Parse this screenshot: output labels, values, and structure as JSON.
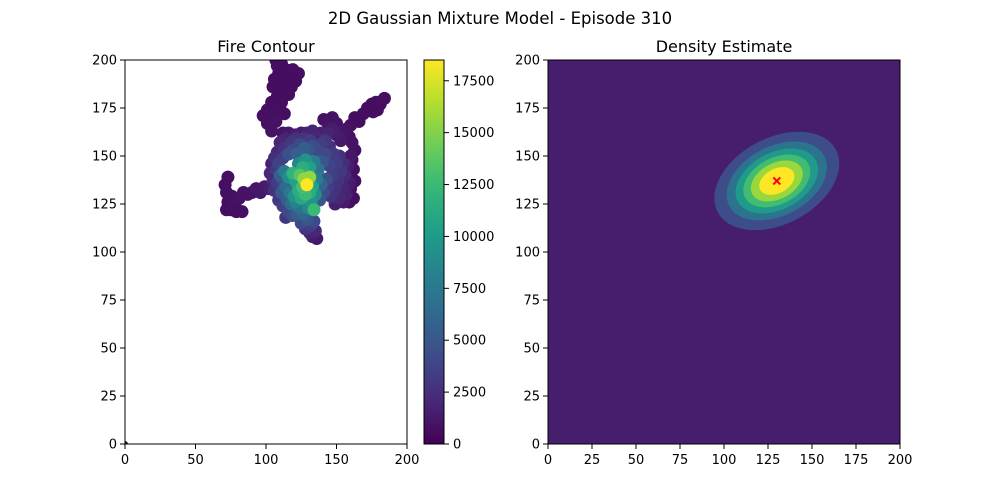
{
  "figure": {
    "suptitle": "2D Gaussian Mixture Model - Episode 310"
  },
  "chart_data": [
    {
      "type": "scatter",
      "title": "Fire Contour",
      "xlabel": "",
      "ylabel": "",
      "xlim": [
        0,
        200
      ],
      "ylim": [
        0,
        200
      ],
      "xticks": [
        "0",
        "50",
        "100",
        "150",
        "200"
      ],
      "yticks": [
        "0",
        "25",
        "50",
        "75",
        "100",
        "125",
        "150",
        "175",
        "200"
      ],
      "colormap": "viridis",
      "colorbar": {
        "range": [
          0,
          18500
        ],
        "ticks": [
          "0",
          "2500",
          "5000",
          "7500",
          "10000",
          "12500",
          "15000",
          "17500"
        ]
      },
      "grid": false,
      "hotspot": {
        "x": 129,
        "y": 135
      },
      "points": [
        {
          "x": 0,
          "y": 0,
          "v": 300
        },
        {
          "x": 72,
          "y": 122,
          "v": 700
        },
        {
          "x": 73,
          "y": 126,
          "v": 700
        },
        {
          "x": 72,
          "y": 131,
          "v": 800
        },
        {
          "x": 71,
          "y": 135,
          "v": 700
        },
        {
          "x": 73,
          "y": 139,
          "v": 800
        },
        {
          "x": 75,
          "y": 122,
          "v": 700
        },
        {
          "x": 78,
          "y": 124,
          "v": 800
        },
        {
          "x": 81,
          "y": 128,
          "v": 900
        },
        {
          "x": 84,
          "y": 131,
          "v": 900
        },
        {
          "x": 87,
          "y": 130,
          "v": 900
        },
        {
          "x": 90,
          "y": 131,
          "v": 1000
        },
        {
          "x": 93,
          "y": 133,
          "v": 1100
        },
        {
          "x": 96,
          "y": 131,
          "v": 1200
        },
        {
          "x": 99,
          "y": 134,
          "v": 1300
        },
        {
          "x": 102,
          "y": 133,
          "v": 1500
        },
        {
          "x": 79,
          "y": 121,
          "v": 700
        },
        {
          "x": 83,
          "y": 121,
          "v": 800
        },
        {
          "x": 76,
          "y": 129,
          "v": 800
        },
        {
          "x": 105,
          "y": 137,
          "v": 2200
        },
        {
          "x": 108,
          "y": 136,
          "v": 3300
        },
        {
          "x": 110,
          "y": 140,
          "v": 5500
        },
        {
          "x": 113,
          "y": 142,
          "v": 7600
        },
        {
          "x": 116,
          "y": 139,
          "v": 9000
        },
        {
          "x": 119,
          "y": 141,
          "v": 12000
        },
        {
          "x": 121,
          "y": 137,
          "v": 10500
        },
        {
          "x": 124,
          "y": 140,
          "v": 13500
        },
        {
          "x": 127,
          "y": 138,
          "v": 15500
        },
        {
          "x": 129,
          "y": 135,
          "v": 18500
        },
        {
          "x": 131,
          "y": 139,
          "v": 15500
        },
        {
          "x": 126,
          "y": 134,
          "v": 13000
        },
        {
          "x": 123,
          "y": 132,
          "v": 11500
        },
        {
          "x": 120,
          "y": 129,
          "v": 9500
        },
        {
          "x": 117,
          "y": 131,
          "v": 7500
        },
        {
          "x": 114,
          "y": 134,
          "v": 6200
        },
        {
          "x": 111,
          "y": 131,
          "v": 5200
        },
        {
          "x": 115,
          "y": 127,
          "v": 5500
        },
        {
          "x": 118,
          "y": 125,
          "v": 6500
        },
        {
          "x": 121,
          "y": 126,
          "v": 8200
        },
        {
          "x": 125,
          "y": 128,
          "v": 11000
        },
        {
          "x": 128,
          "y": 130,
          "v": 12500
        },
        {
          "x": 131,
          "y": 131,
          "v": 11500
        },
        {
          "x": 133,
          "y": 134,
          "v": 10500
        },
        {
          "x": 135,
          "y": 130,
          "v": 9000
        },
        {
          "x": 132,
          "y": 126,
          "v": 9500
        },
        {
          "x": 134,
          "y": 122,
          "v": 12500
        },
        {
          "x": 130,
          "y": 123,
          "v": 8500
        },
        {
          "x": 127,
          "y": 120,
          "v": 6000
        },
        {
          "x": 124,
          "y": 123,
          "v": 7000
        },
        {
          "x": 129,
          "y": 117,
          "v": 5000
        },
        {
          "x": 132,
          "y": 114,
          "v": 3500
        },
        {
          "x": 135,
          "y": 111,
          "v": 2000
        },
        {
          "x": 136,
          "y": 107,
          "v": 1200
        },
        {
          "x": 134,
          "y": 116,
          "v": 4000
        },
        {
          "x": 126,
          "y": 144,
          "v": 11500
        },
        {
          "x": 123,
          "y": 146,
          "v": 8500
        },
        {
          "x": 128,
          "y": 148,
          "v": 9500
        },
        {
          "x": 131,
          "y": 144,
          "v": 10500
        },
        {
          "x": 134,
          "y": 147,
          "v": 8000
        },
        {
          "x": 137,
          "y": 143,
          "v": 7000
        },
        {
          "x": 136,
          "y": 138,
          "v": 8000
        },
        {
          "x": 139,
          "y": 135,
          "v": 6000
        },
        {
          "x": 138,
          "y": 127,
          "v": 5000
        },
        {
          "x": 141,
          "y": 131,
          "v": 4300
        },
        {
          "x": 143,
          "y": 138,
          "v": 4500
        },
        {
          "x": 140,
          "y": 147,
          "v": 5000
        },
        {
          "x": 142,
          "y": 151,
          "v": 4000
        },
        {
          "x": 145,
          "y": 145,
          "v": 3700
        },
        {
          "x": 147,
          "y": 140,
          "v": 3400
        },
        {
          "x": 144,
          "y": 134,
          "v": 3300
        },
        {
          "x": 146,
          "y": 129,
          "v": 2800
        },
        {
          "x": 149,
          "y": 133,
          "v": 2600
        },
        {
          "x": 151,
          "y": 137,
          "v": 2800
        },
        {
          "x": 153,
          "y": 142,
          "v": 3000
        },
        {
          "x": 150,
          "y": 146,
          "v": 3400
        },
        {
          "x": 148,
          "y": 151,
          "v": 3200
        },
        {
          "x": 152,
          "y": 150,
          "v": 2600
        },
        {
          "x": 155,
          "y": 146,
          "v": 2300
        },
        {
          "x": 156,
          "y": 140,
          "v": 2100
        },
        {
          "x": 154,
          "y": 134,
          "v": 1900
        },
        {
          "x": 157,
          "y": 130,
          "v": 1700
        },
        {
          "x": 152,
          "y": 128,
          "v": 2000
        },
        {
          "x": 149,
          "y": 125,
          "v": 1600
        },
        {
          "x": 155,
          "y": 126,
          "v": 1300
        },
        {
          "x": 159,
          "y": 136,
          "v": 1400
        },
        {
          "x": 158,
          "y": 145,
          "v": 1500
        },
        {
          "x": 160,
          "y": 150,
          "v": 1200
        },
        {
          "x": 109,
          "y": 146,
          "v": 3600
        },
        {
          "x": 112,
          "y": 149,
          "v": 3300
        },
        {
          "x": 116,
          "y": 151,
          "v": 4500
        },
        {
          "x": 119,
          "y": 153,
          "v": 4200
        },
        {
          "x": 122,
          "y": 151,
          "v": 5600
        },
        {
          "x": 113,
          "y": 154,
          "v": 2600
        },
        {
          "x": 110,
          "y": 157,
          "v": 2000
        },
        {
          "x": 114,
          "y": 159,
          "v": 1800
        },
        {
          "x": 118,
          "y": 157,
          "v": 3000
        },
        {
          "x": 121,
          "y": 159,
          "v": 2600
        },
        {
          "x": 124,
          "y": 156,
          "v": 4000
        },
        {
          "x": 127,
          "y": 154,
          "v": 5400
        },
        {
          "x": 130,
          "y": 153,
          "v": 5000
        },
        {
          "x": 133,
          "y": 155,
          "v": 4400
        },
        {
          "x": 136,
          "y": 153,
          "v": 4000
        },
        {
          "x": 139,
          "y": 156,
          "v": 3400
        },
        {
          "x": 142,
          "y": 158,
          "v": 2900
        },
        {
          "x": 145,
          "y": 155,
          "v": 2600
        },
        {
          "x": 131,
          "y": 158,
          "v": 3300
        },
        {
          "x": 127,
          "y": 159,
          "v": 2600
        },
        {
          "x": 135,
          "y": 160,
          "v": 2000
        },
        {
          "x": 139,
          "y": 162,
          "v": 1600
        },
        {
          "x": 133,
          "y": 163,
          "v": 1800
        },
        {
          "x": 129,
          "y": 162,
          "v": 1700
        },
        {
          "x": 125,
          "y": 162,
          "v": 1300
        },
        {
          "x": 121,
          "y": 161,
          "v": 1500
        },
        {
          "x": 112,
          "y": 162,
          "v": 1000
        },
        {
          "x": 116,
          "y": 162,
          "v": 1200
        },
        {
          "x": 108,
          "y": 152,
          "v": 2000
        },
        {
          "x": 106,
          "y": 149,
          "v": 2400
        },
        {
          "x": 104,
          "y": 146,
          "v": 1700
        },
        {
          "x": 103,
          "y": 141,
          "v": 2000
        },
        {
          "x": 107,
          "y": 143,
          "v": 3000
        },
        {
          "x": 112,
          "y": 137,
          "v": 4400
        },
        {
          "x": 106,
          "y": 132,
          "v": 2600
        },
        {
          "x": 109,
          "y": 127,
          "v": 3000
        },
        {
          "x": 112,
          "y": 124,
          "v": 3600
        },
        {
          "x": 116,
          "y": 121,
          "v": 4000
        },
        {
          "x": 119,
          "y": 119,
          "v": 4500
        },
        {
          "x": 122,
          "y": 120,
          "v": 5400
        },
        {
          "x": 114,
          "y": 118,
          "v": 3000
        },
        {
          "x": 125,
          "y": 115,
          "v": 4000
        },
        {
          "x": 128,
          "y": 112,
          "v": 2800
        },
        {
          "x": 131,
          "y": 110,
          "v": 1700
        },
        {
          "x": 133,
          "y": 108,
          "v": 1300
        },
        {
          "x": 104,
          "y": 163,
          "v": 900
        },
        {
          "x": 101,
          "y": 167,
          "v": 800
        },
        {
          "x": 98,
          "y": 171,
          "v": 800
        },
        {
          "x": 101,
          "y": 174,
          "v": 700
        },
        {
          "x": 104,
          "y": 171,
          "v": 800
        },
        {
          "x": 107,
          "y": 168,
          "v": 900
        },
        {
          "x": 106,
          "y": 175,
          "v": 700
        },
        {
          "x": 104,
          "y": 178,
          "v": 700
        },
        {
          "x": 108,
          "y": 181,
          "v": 700
        },
        {
          "x": 111,
          "y": 178,
          "v": 700
        },
        {
          "x": 110,
          "y": 185,
          "v": 700
        },
        {
          "x": 112,
          "y": 189,
          "v": 700
        },
        {
          "x": 109,
          "y": 193,
          "v": 700
        },
        {
          "x": 106,
          "y": 190,
          "v": 700
        },
        {
          "x": 105,
          "y": 186,
          "v": 700
        },
        {
          "x": 108,
          "y": 197,
          "v": 700
        },
        {
          "x": 107,
          "y": 200,
          "v": 700
        },
        {
          "x": 111,
          "y": 198,
          "v": 700
        },
        {
          "x": 114,
          "y": 195,
          "v": 700
        },
        {
          "x": 117,
          "y": 192,
          "v": 700
        },
        {
          "x": 115,
          "y": 188,
          "v": 700
        },
        {
          "x": 118,
          "y": 186,
          "v": 700
        },
        {
          "x": 121,
          "y": 189,
          "v": 700
        },
        {
          "x": 119,
          "y": 195,
          "v": 700
        },
        {
          "x": 123,
          "y": 193,
          "v": 700
        },
        {
          "x": 116,
          "y": 182,
          "v": 700
        },
        {
          "x": 113,
          "y": 172,
          "v": 800
        },
        {
          "x": 110,
          "y": 174,
          "v": 700
        },
        {
          "x": 144,
          "y": 162,
          "v": 1800
        },
        {
          "x": 147,
          "y": 164,
          "v": 1500
        },
        {
          "x": 150,
          "y": 161,
          "v": 1400
        },
        {
          "x": 153,
          "y": 158,
          "v": 1200
        },
        {
          "x": 156,
          "y": 160,
          "v": 1000
        },
        {
          "x": 153,
          "y": 163,
          "v": 1100
        },
        {
          "x": 150,
          "y": 167,
          "v": 1000
        },
        {
          "x": 147,
          "y": 170,
          "v": 900
        },
        {
          "x": 144,
          "y": 167,
          "v": 1000
        },
        {
          "x": 141,
          "y": 169,
          "v": 800
        },
        {
          "x": 157,
          "y": 164,
          "v": 900
        },
        {
          "x": 160,
          "y": 166,
          "v": 800
        },
        {
          "x": 163,
          "y": 170,
          "v": 700
        },
        {
          "x": 166,
          "y": 168,
          "v": 700
        },
        {
          "x": 169,
          "y": 172,
          "v": 700
        },
        {
          "x": 172,
          "y": 175,
          "v": 700
        },
        {
          "x": 175,
          "y": 177,
          "v": 700
        },
        {
          "x": 178,
          "y": 178,
          "v": 700
        },
        {
          "x": 181,
          "y": 177,
          "v": 700
        },
        {
          "x": 184,
          "y": 180,
          "v": 700
        },
        {
          "x": 179,
          "y": 174,
          "v": 700
        },
        {
          "x": 176,
          "y": 173,
          "v": 700
        },
        {
          "x": 159,
          "y": 160,
          "v": 800
        },
        {
          "x": 161,
          "y": 157,
          "v": 900
        },
        {
          "x": 163,
          "y": 153,
          "v": 800
        },
        {
          "x": 161,
          "y": 148,
          "v": 900
        },
        {
          "x": 162,
          "y": 143,
          "v": 800
        },
        {
          "x": 163,
          "y": 137,
          "v": 800
        },
        {
          "x": 160,
          "y": 133,
          "v": 900
        },
        {
          "x": 162,
          "y": 128,
          "v": 700
        },
        {
          "x": 159,
          "y": 126,
          "v": 700
        }
      ]
    },
    {
      "type": "heatmap",
      "title": "Density Estimate",
      "xlabel": "",
      "ylabel": "",
      "xlim": [
        0,
        200
      ],
      "ylim": [
        0,
        200
      ],
      "xticks": [
        "0",
        "25",
        "50",
        "75",
        "100",
        "125",
        "150",
        "175",
        "200"
      ],
      "yticks": [
        "0",
        "25",
        "50",
        "75",
        "100",
        "125",
        "150",
        "175",
        "200"
      ],
      "colormap": "viridis",
      "grid": false,
      "gaussian": {
        "mean": [
          130,
          137
        ],
        "sx": 18,
        "sy": 13,
        "rho": 0.35
      },
      "contour_levels": 7,
      "mean_marker": {
        "x": 130,
        "y": 137,
        "symbol": "x",
        "color": "#ff0000"
      }
    }
  ]
}
